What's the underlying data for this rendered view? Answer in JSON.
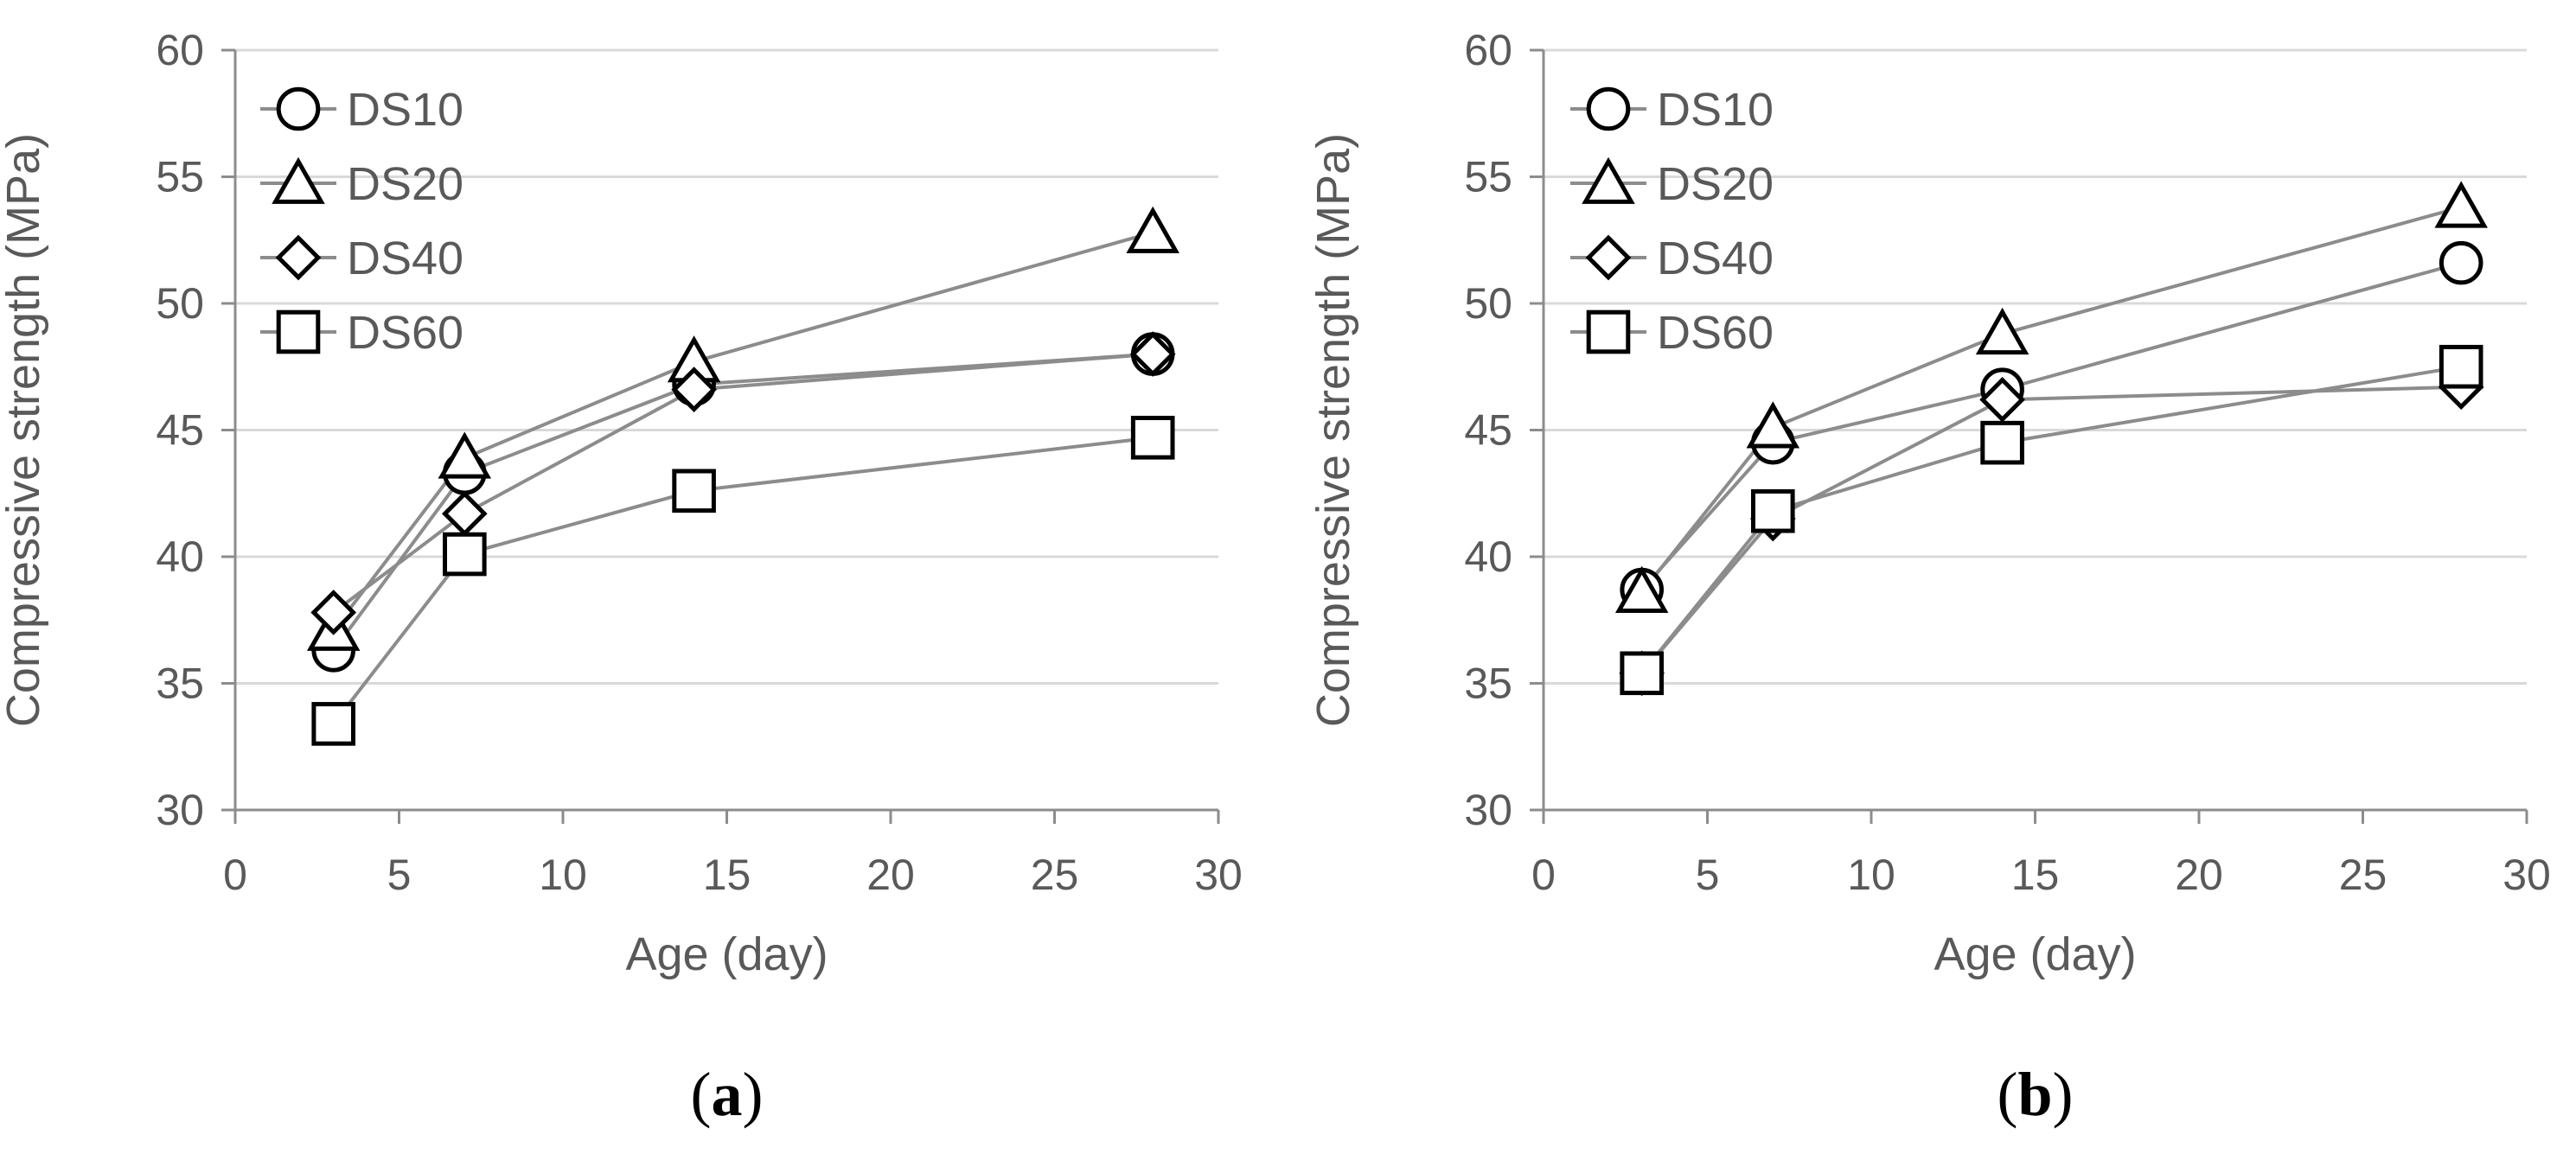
{
  "chart_data": [
    {
      "type": "line",
      "panel_label": "a",
      "xlabel": "Age (day)",
      "ylabel": "Compressive strength (MPa)",
      "xlim": [
        0,
        30
      ],
      "ylim": [
        30,
        60
      ],
      "xticks": [
        0,
        5,
        10,
        15,
        20,
        25,
        30
      ],
      "yticks": [
        30,
        35,
        40,
        45,
        50,
        55,
        60
      ],
      "grid": "horizontal",
      "legend_position": "top-left",
      "x": [
        3,
        7,
        14,
        28
      ],
      "series": [
        {
          "name": "DS10",
          "marker": "circle",
          "values": [
            36.3,
            43.3,
            46.8,
            48.0
          ]
        },
        {
          "name": "DS20",
          "marker": "triangle",
          "values": [
            37.1,
            43.9,
            47.7,
            52.8
          ]
        },
        {
          "name": "DS40",
          "marker": "diamond",
          "values": [
            37.8,
            41.7,
            46.6,
            48.0
          ]
        },
        {
          "name": "DS60",
          "marker": "square",
          "values": [
            33.4,
            40.1,
            42.6,
            44.7
          ]
        }
      ]
    },
    {
      "type": "line",
      "panel_label": "b",
      "xlabel": "Age (day)",
      "ylabel": "Compressive strength (MPa)",
      "xlim": [
        0,
        30
      ],
      "ylim": [
        30,
        60
      ],
      "xticks": [
        0,
        5,
        10,
        15,
        20,
        25,
        30
      ],
      "yticks": [
        30,
        35,
        40,
        45,
        50,
        55,
        60
      ],
      "grid": "horizontal",
      "legend_position": "top-left",
      "x": [
        3,
        7,
        14,
        28
      ],
      "series": [
        {
          "name": "DS10",
          "marker": "circle",
          "values": [
            38.7,
            44.5,
            46.6,
            51.6
          ]
        },
        {
          "name": "DS20",
          "marker": "triangle",
          "values": [
            38.6,
            45.1,
            48.8,
            53.8
          ]
        },
        {
          "name": "DS40",
          "marker": "diamond",
          "values": [
            35.4,
            41.5,
            46.2,
            46.7
          ]
        },
        {
          "name": "DS60",
          "marker": "square",
          "values": [
            35.4,
            41.8,
            44.5,
            47.5
          ]
        }
      ]
    }
  ],
  "colors": {
    "series_line": "#8c8c8c",
    "marker_stroke": "#000000",
    "marker_fill": "#ffffff",
    "grid": "#d9d9d9",
    "axis": "#8c8c8c",
    "text": "#595959"
  }
}
